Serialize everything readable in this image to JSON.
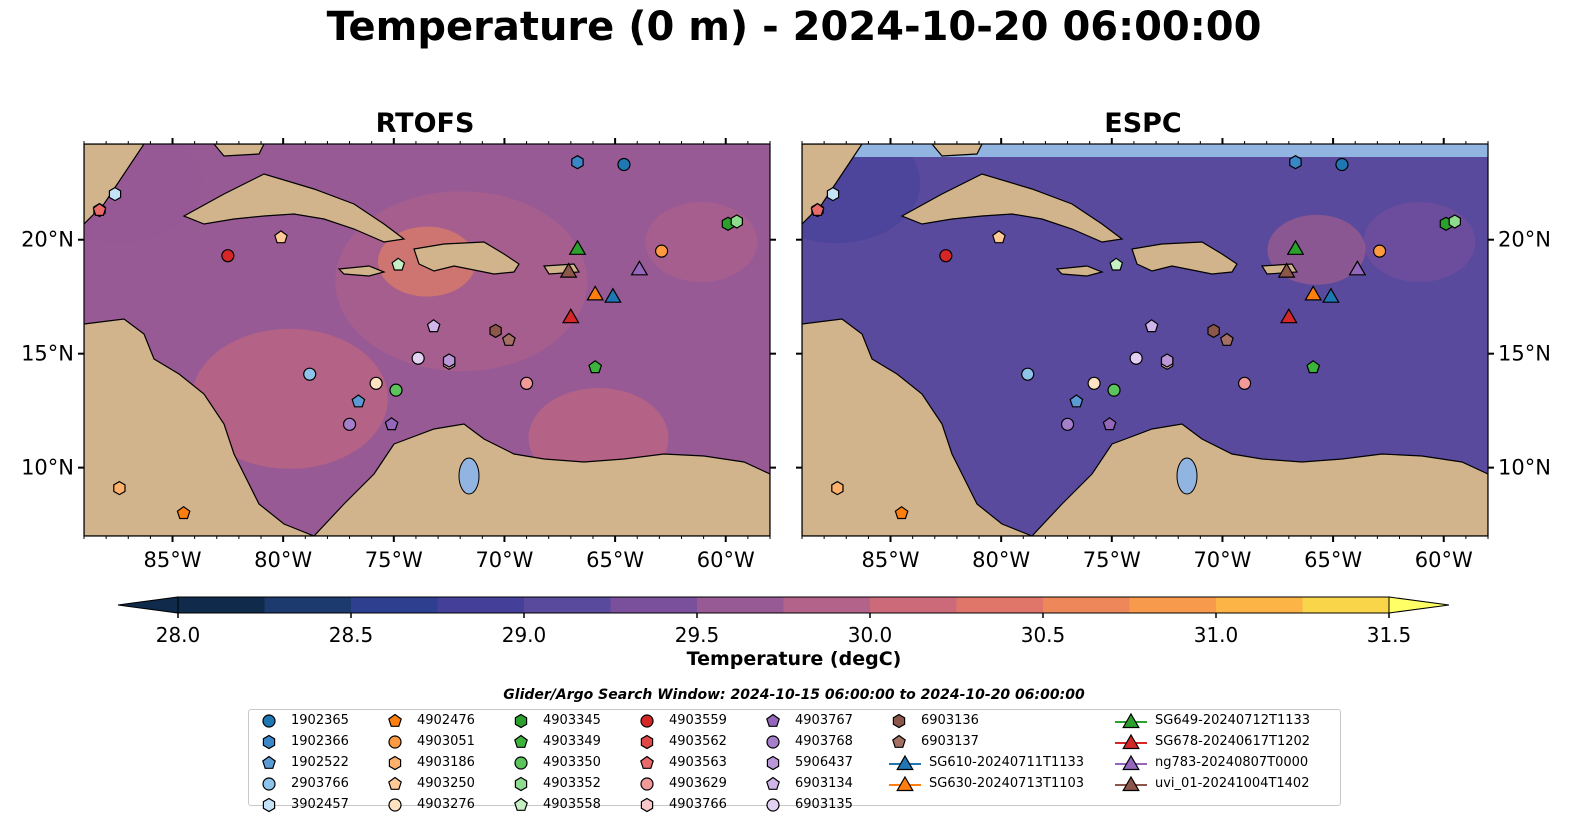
{
  "title": "Temperature (0 m) - 2024-10-20 06:00:00",
  "chart_data": [
    {
      "type": "heatmap",
      "title": "RTOFS",
      "xlim": [
        -89,
        -58
      ],
      "ylim": [
        7,
        24.2
      ],
      "xticks": [
        -85,
        -80,
        -75,
        -70,
        -65,
        -60
      ],
      "xtick_labels": [
        "85°W",
        "80°W",
        "75°W",
        "70°W",
        "65°W",
        "60°W"
      ],
      "yticks": [
        10,
        15,
        20
      ],
      "ytick_labels": [
        "10°N",
        "15°N",
        "20°N"
      ],
      "background_temp": 29.7
    },
    {
      "type": "heatmap",
      "title": "ESPC",
      "xlim": [
        -89,
        -58
      ],
      "ylim": [
        7,
        24.2
      ],
      "xticks": [
        -85,
        -80,
        -75,
        -70,
        -65,
        -60
      ],
      "xtick_labels": [
        "85°W",
        "80°W",
        "75°W",
        "70°W",
        "65°W",
        "60°W"
      ],
      "yticks": [
        10,
        15,
        20
      ],
      "ytick_labels": [
        "10°N",
        "15°N",
        "20°N"
      ],
      "background_temp": 29.0
    }
  ],
  "colorbar": {
    "label": "Temperature (degC)",
    "min": 28.0,
    "max": 31.75,
    "step": 0.25,
    "ticks": [
      28.0,
      28.5,
      29.0,
      29.5,
      30.0,
      30.5,
      31.0,
      31.5
    ],
    "tick_labels": [
      "28.0",
      "28.5",
      "29.0",
      "29.5",
      "30.0",
      "30.5",
      "31.0",
      "31.5"
    ],
    "colors": [
      "#0f2a4a",
      "#1d3a6e",
      "#2e3f8f",
      "#44409a",
      "#5a4a9d",
      "#7a4f9c",
      "#975a95",
      "#b3628a",
      "#cc6a7a",
      "#e0766a",
      "#ee885a",
      "#f79a4c",
      "#fbb445",
      "#f9d54a",
      "#ffff66"
    ]
  },
  "search_window": "Glider/Argo Search Window: 2024-10-15 06:00:00 to 2024-10-20 06:00:00",
  "legend": {
    "columns": [
      [
        {
          "label": "1902365",
          "shape": "circle",
          "color": "#1f77b4"
        },
        {
          "label": "1902366",
          "shape": "hexagon",
          "color": "#3a87c8"
        },
        {
          "label": "1902522",
          "shape": "pentagon",
          "color": "#5b9bd5"
        },
        {
          "label": "2903766",
          "shape": "circle",
          "color": "#8ec3ea"
        },
        {
          "label": "3902457",
          "shape": "hexagon",
          "color": "#c5e3f7"
        }
      ],
      [
        {
          "label": "4902476",
          "shape": "pentagon",
          "color": "#ff7f0e"
        },
        {
          "label": "4903051",
          "shape": "circle",
          "color": "#ff9a40"
        },
        {
          "label": "4903186",
          "shape": "hexagon",
          "color": "#ffb06b"
        },
        {
          "label": "4903250",
          "shape": "pentagon",
          "color": "#ffc996"
        },
        {
          "label": "4903276",
          "shape": "circle",
          "color": "#ffe2c2"
        }
      ],
      [
        {
          "label": "4903345",
          "shape": "hexagon",
          "color": "#2ca02c"
        },
        {
          "label": "4903349",
          "shape": "pentagon",
          "color": "#3cb43c"
        },
        {
          "label": "4903350",
          "shape": "circle",
          "color": "#5cc45c"
        },
        {
          "label": "4903352",
          "shape": "hexagon",
          "color": "#8fdb8f"
        },
        {
          "label": "4903558",
          "shape": "pentagon",
          "color": "#c4f0c4"
        }
      ],
      [
        {
          "label": "4903559",
          "shape": "circle",
          "color": "#d62728"
        },
        {
          "label": "4903562",
          "shape": "hexagon",
          "color": "#e04848"
        },
        {
          "label": "4903563",
          "shape": "pentagon",
          "color": "#ea6a6a"
        },
        {
          "label": "4903629",
          "shape": "circle",
          "color": "#f29a9a"
        },
        {
          "label": "4903766",
          "shape": "hexagon",
          "color": "#f8c8c8"
        }
      ],
      [
        {
          "label": "4903767",
          "shape": "pentagon",
          "color": "#9467bd"
        },
        {
          "label": "4903768",
          "shape": "circle",
          "color": "#a67fcb"
        },
        {
          "label": "5906437",
          "shape": "hexagon",
          "color": "#b997d8"
        },
        {
          "label": "6903134",
          "shape": "pentagon",
          "color": "#d0b5ea"
        },
        {
          "label": "6903135",
          "shape": "circle",
          "color": "#e3d1f3"
        }
      ],
      [
        {
          "label": "6903136",
          "shape": "hexagon",
          "color": "#8c564b"
        },
        {
          "label": "6903137",
          "shape": "pentagon",
          "color": "#a47064"
        },
        {
          "label": "SG610-20240711T1133",
          "shape": "triangle-line",
          "color": "#1f77b4"
        },
        {
          "label": "SG630-20240713T1103",
          "shape": "triangle-line",
          "color": "#ff7f0e"
        }
      ],
      [
        {
          "label": "SG649-20240712T1133",
          "shape": "triangle-line",
          "color": "#2ca02c"
        },
        {
          "label": "SG678-20240617T1202",
          "shape": "triangle-line",
          "color": "#d62728"
        },
        {
          "label": "ng783-20240807T0000",
          "shape": "triangle-line",
          "color": "#9467bd"
        },
        {
          "label": "uvi_01-20241004T1402",
          "shape": "triangle-line",
          "color": "#8c564b"
        }
      ]
    ]
  },
  "markers": [
    {
      "label": "1902365",
      "lon": -64.6,
      "lat": 23.3
    },
    {
      "label": "1902366",
      "lon": -66.7,
      "lat": 23.4
    },
    {
      "label": "1902522",
      "lon": -76.6,
      "lat": 12.9
    },
    {
      "label": "2903766",
      "lon": -78.8,
      "lat": 14.1
    },
    {
      "label": "3902457",
      "lon": -87.6,
      "lat": 22.0
    },
    {
      "label": "4902476",
      "lon": -84.5,
      "lat": 8.0
    },
    {
      "label": "4903051",
      "lon": -62.9,
      "lat": 19.5
    },
    {
      "label": "4903186",
      "lon": -87.4,
      "lat": 9.1
    },
    {
      "label": "4903250",
      "lon": -80.1,
      "lat": 20.1
    },
    {
      "label": "4903276",
      "lon": -75.8,
      "lat": 13.7
    },
    {
      "label": "4903345",
      "lon": -59.9,
      "lat": 20.7
    },
    {
      "label": "4903349",
      "lon": -65.9,
      "lat": 14.4
    },
    {
      "label": "4903350",
      "lon": -74.9,
      "lat": 13.4
    },
    {
      "label": "4903352",
      "lon": -59.5,
      "lat": 20.8
    },
    {
      "label": "4903558",
      "lon": -74.8,
      "lat": 18.9
    },
    {
      "label": "4903559",
      "lon": -82.5,
      "lat": 19.3
    },
    {
      "label": "4903562",
      "lon": -88.3,
      "lat": 21.3
    },
    {
      "label": "4903563",
      "lon": -88.3,
      "lat": 21.3
    },
    {
      "label": "4903629",
      "lon": -69.0,
      "lat": 13.7
    },
    {
      "label": "4903766",
      "lon": -72.5,
      "lat": 14.6
    },
    {
      "label": "4903767",
      "lon": -75.1,
      "lat": 11.9
    },
    {
      "label": "4903768",
      "lon": -77.0,
      "lat": 11.9
    },
    {
      "label": "5906437",
      "lon": -72.5,
      "lat": 14.7
    },
    {
      "label": "6903134",
      "lon": -73.2,
      "lat": 16.2
    },
    {
      "label": "6903135",
      "lon": -73.9,
      "lat": 14.8
    },
    {
      "label": "6903136",
      "lon": -70.4,
      "lat": 16.0
    },
    {
      "label": "6903137",
      "lon": -69.8,
      "lat": 15.6
    },
    {
      "label": "SG610-20240711T1133",
      "lon": -65.1,
      "lat": 17.5
    },
    {
      "label": "SG630-20240713T1103",
      "lon": -65.9,
      "lat": 17.6
    },
    {
      "label": "SG649-20240712T1133",
      "lon": -66.7,
      "lat": 19.6
    },
    {
      "label": "SG678-20240617T1202",
      "lon": -67.0,
      "lat": 16.6
    },
    {
      "label": "ng783-20240807T0000",
      "lon": -63.9,
      "lat": 18.7
    },
    {
      "label": "uvi_01-20241004T1402",
      "lon": -67.1,
      "lat": 18.6
    }
  ]
}
